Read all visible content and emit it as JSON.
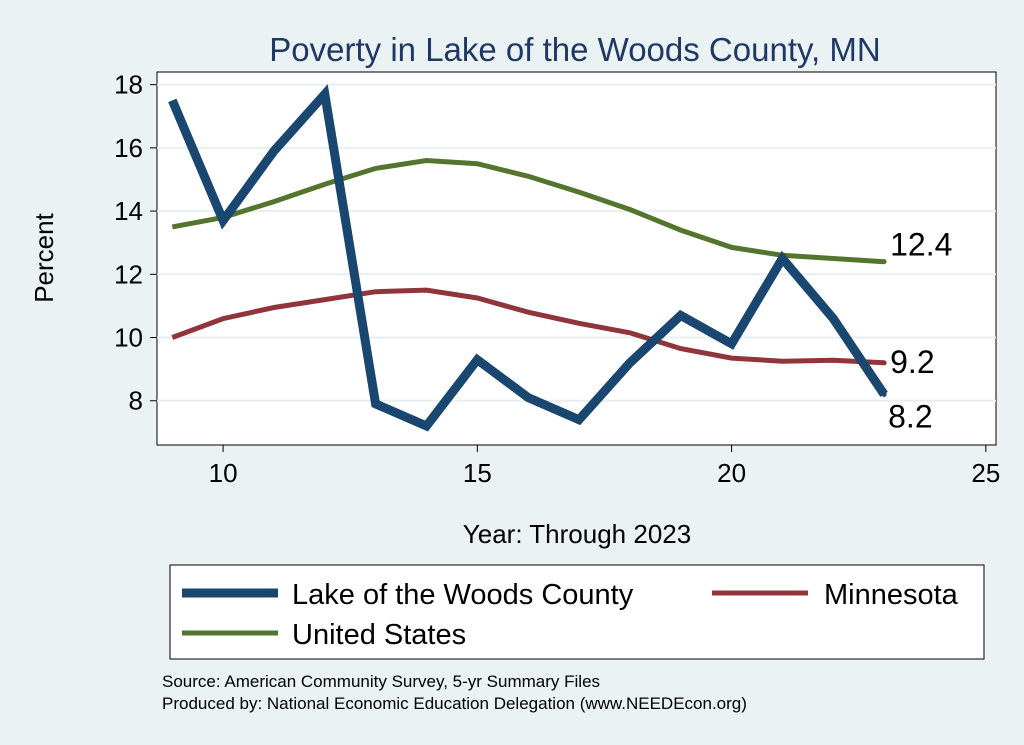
{
  "chart_data": {
    "type": "line",
    "title": "Poverty in Lake of the Woods County, MN",
    "xlabel": "Year: Through 2023",
    "ylabel": "Percent",
    "xlim": [
      8.7,
      25.2
    ],
    "ylim": [
      6.6,
      18.4
    ],
    "xticks": [
      10,
      15,
      20,
      25
    ],
    "yticks": [
      8,
      10,
      12,
      14,
      16,
      18
    ],
    "grid": true,
    "legend_position": "bottom",
    "x": [
      9,
      10,
      11,
      12,
      13,
      14,
      15,
      16,
      17,
      18,
      19,
      20,
      21,
      22,
      23
    ],
    "series": [
      {
        "name": "Lake of the Woods County",
        "color": "#1a476f",
        "values": [
          17.5,
          13.7,
          15.9,
          17.7,
          7.9,
          7.2,
          9.3,
          8.1,
          7.4,
          9.2,
          10.7,
          9.8,
          12.5,
          10.6,
          8.2
        ],
        "end_label": "8.2"
      },
      {
        "name": "Minnesota",
        "color": "#90353b",
        "values": [
          10.0,
          10.6,
          10.95,
          11.2,
          11.45,
          11.5,
          11.25,
          10.8,
          10.45,
          10.15,
          9.65,
          9.35,
          9.25,
          9.28,
          9.2
        ],
        "end_label": "9.2"
      },
      {
        "name": "United States",
        "color": "#55752f",
        "values": [
          13.5,
          13.8,
          14.3,
          14.85,
          15.35,
          15.6,
          15.5,
          15.1,
          14.6,
          14.05,
          13.4,
          12.85,
          12.6,
          12.5,
          12.4
        ],
        "end_label": "12.4"
      }
    ]
  },
  "source": {
    "line1": "Source: American Community Survey, 5-yr Summary Files",
    "line2": "Produced by: National Economic Education Delegation (www.NEEDEcon.org)"
  }
}
